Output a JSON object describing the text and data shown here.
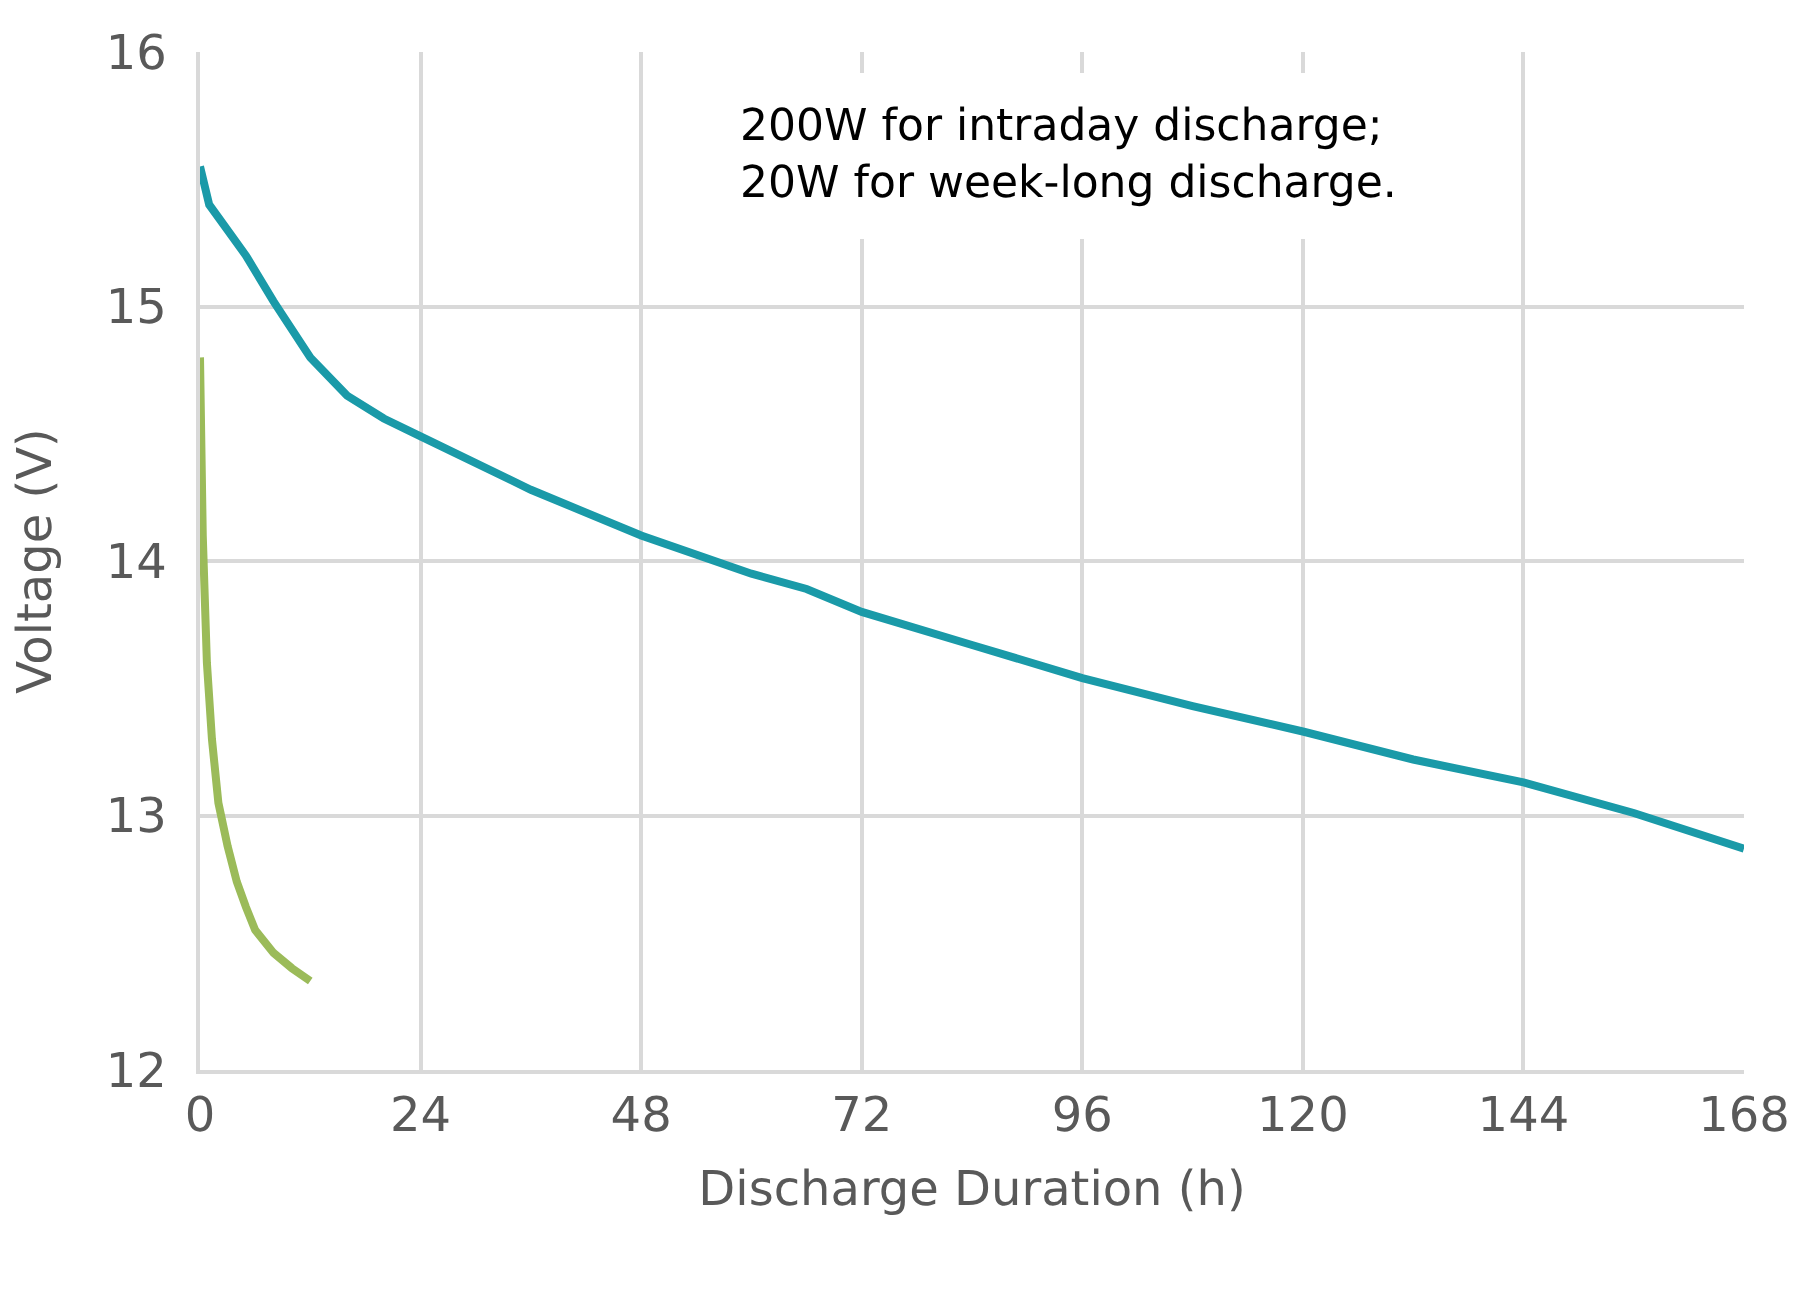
{
  "chart_data": {
    "type": "line",
    "xlabel": "Discharge Duration (h)",
    "ylabel": "Voltage (V)",
    "xlim": [
      0,
      168
    ],
    "xticks": [
      0,
      24,
      48,
      72,
      96,
      120,
      144,
      168
    ],
    "ylim": [
      12,
      16
    ],
    "yticks": [
      12,
      13,
      14,
      15,
      16
    ],
    "grid": true,
    "marker": "none",
    "line_style": "solid",
    "annotations": [
      "200W for intraday discharge;\n20W for week-long discharge."
    ],
    "series": [
      {
        "color": "#1a9aa8",
        "x": [
          0,
          1,
          3,
          5,
          8,
          12,
          16,
          20,
          24,
          36,
          48,
          60,
          66,
          72,
          84,
          96,
          108,
          120,
          132,
          144,
          156,
          168
        ],
        "values": [
          15.55,
          15.4,
          15.3,
          15.2,
          15.02,
          14.8,
          14.65,
          14.56,
          14.49,
          14.28,
          14.1,
          13.95,
          13.89,
          13.8,
          13.67,
          13.54,
          13.43,
          13.33,
          13.22,
          13.13,
          13.01,
          12.87
        ]
      },
      {
        "color": "#9bbb59",
        "x": [
          0,
          0.3,
          0.75,
          1.3,
          2,
          3,
          4,
          5,
          6,
          8,
          10,
          12
        ],
        "values": [
          14.8,
          14.1,
          13.6,
          13.3,
          13.05,
          12.88,
          12.74,
          12.64,
          12.55,
          12.46,
          12.4,
          12.35
        ]
      }
    ]
  }
}
